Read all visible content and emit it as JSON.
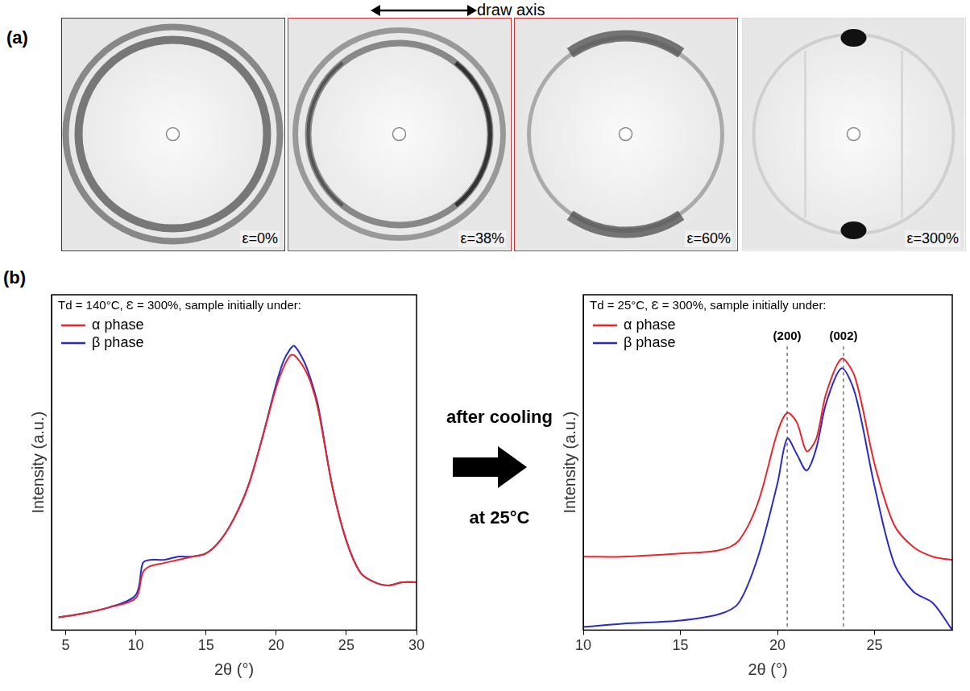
{
  "panel_labels": [
    "(a)",
    "(b)"
  ],
  "panel_a": {
    "axis_label": "draw axis",
    "images": [
      {
        "label": "ε=0%"
      },
      {
        "label": "ε=38%"
      },
      {
        "label": "ε=60%"
      },
      {
        "label": "ε=300%"
      }
    ]
  },
  "arrow_text": [
    "after cooling",
    "at 25°C"
  ],
  "chart_data": [
    {
      "type": "line",
      "title": "Td = 140°C, Ɛ = 300%, sample initially under:",
      "x_label": "2θ (°)",
      "y_label": "Intensity (a.u.)",
      "x": [
        4.5,
        6,
        8,
        10,
        10.5,
        11,
        12,
        13,
        14,
        15,
        16,
        17,
        18,
        19,
        20,
        20.5,
        21,
        21.3,
        22,
        22.5,
        23,
        24,
        25,
        26,
        27,
        28,
        29,
        30
      ],
      "series": [
        {
          "name": "α phase",
          "color": "#e8262b",
          "values": [
            4,
            5,
            7,
            10,
            18,
            20,
            21,
            22,
            23,
            24,
            28,
            35,
            45,
            60,
            76,
            82,
            86,
            86,
            82,
            77,
            69,
            45,
            28,
            18,
            15,
            14,
            15,
            15
          ]
        },
        {
          "name": "β phase",
          "color": "#2b2bc8",
          "values": [
            4,
            5,
            7,
            11,
            21,
            22,
            22,
            23,
            23,
            24,
            28,
            35,
            45,
            60,
            77,
            84,
            88,
            89,
            84,
            78,
            70,
            45,
            28,
            18,
            15,
            14,
            15,
            15
          ]
        }
      ],
      "xlim": [
        4,
        30
      ],
      "xticks": [
        5,
        10,
        15,
        20,
        25,
        30
      ],
      "ylim": [
        0,
        105
      ],
      "tick_labels": "x",
      "grid": false,
      "legend": "upper left"
    },
    {
      "type": "line",
      "title": "Td = 25°C, Ɛ = 300%, sample initially under:",
      "x_label": "2θ (°)",
      "y_label": "Intensity (a.u.)",
      "x": [
        10,
        12,
        15,
        17,
        18,
        19,
        20,
        20.5,
        21,
        21.5,
        22,
        22.5,
        23.3,
        24,
        25,
        26,
        27,
        28,
        29
      ],
      "series": [
        {
          "name": "α phase",
          "color": "#e8262b",
          "values": [
            23,
            23,
            24,
            25,
            28,
            40,
            62,
            68,
            65,
            56,
            60,
            74,
            85,
            79,
            52,
            33,
            26,
            23,
            22
          ]
        },
        {
          "name": "β phase",
          "color": "#2b2bc8",
          "values": [
            1,
            2,
            3,
            5,
            8.5,
            23,
            46,
            60,
            55,
            50,
            57,
            71,
            82,
            74,
            45,
            21,
            12,
            8.5,
            0
          ]
        }
      ],
      "xlim": [
        10,
        29
      ],
      "xticks": [
        10,
        15,
        20,
        25
      ],
      "ylim": [
        0,
        105
      ],
      "annotations": [
        {
          "text": "(200)",
          "x": 20.5
        },
        {
          "text": "(002)",
          "x": 23.4
        }
      ],
      "tick_labels": "x",
      "grid": false,
      "legend": "upper left"
    }
  ]
}
